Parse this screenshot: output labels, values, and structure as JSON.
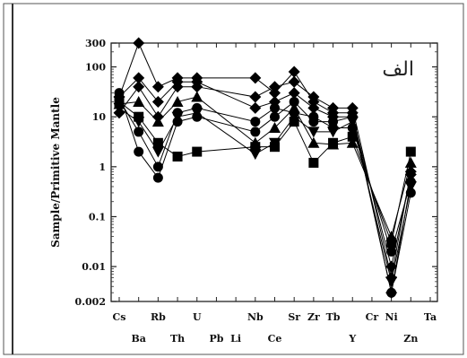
{
  "chart_data": {
    "type": "line",
    "ylabel": "Sample/Primitive Mantle",
    "yscale": "log",
    "ylim": [
      0.002,
      300
    ],
    "y_ticks": [
      {
        "v": 300,
        "label": "300"
      },
      {
        "v": 100,
        "label": "100"
      },
      {
        "v": 10,
        "label": "10"
      },
      {
        "v": 1,
        "label": "1"
      },
      {
        "v": 0.1,
        "label": "0.1"
      },
      {
        "v": 0.01,
        "label": "0.01"
      },
      {
        "v": 0.002,
        "label": "0.002"
      }
    ],
    "categories": [
      "Cs",
      "Ba",
      "Rb",
      "Th",
      "U",
      "Pb",
      "Li",
      "Nb",
      "Ce",
      "Sr",
      "Zr",
      "Tb",
      "Y",
      "Cr",
      "Ni",
      "Zn",
      "Ta"
    ],
    "top_row_labels": [
      "Cs",
      "Rb",
      "U",
      "Nb",
      "Sr",
      "Zr",
      "Tb",
      "Cr",
      "Ni",
      "Ta"
    ],
    "bottom_row_labels": [
      "Ba",
      "Th",
      "Pb",
      "Li",
      "Ce",
      "Y",
      "Zn"
    ],
    "annotation": "الف",
    "grid": false,
    "series": [
      {
        "marker": "diamond",
        "points": [
          [
            "Cs",
            25
          ],
          [
            "Ba",
            300
          ],
          [
            "Rb",
            40
          ],
          [
            "Th",
            60
          ],
          [
            "U",
            60
          ],
          [
            "Nb",
            60
          ],
          [
            "Ce",
            30
          ],
          [
            "Sr",
            80
          ],
          [
            "Zr",
            20
          ],
          [
            "Tb",
            12
          ],
          [
            "Y",
            12
          ],
          [
            "Ni",
            0.003
          ],
          [
            "Zn",
            0.5
          ]
        ]
      },
      {
        "marker": "diamond",
        "points": [
          [
            "Cs",
            12
          ],
          [
            "Ba",
            40
          ],
          [
            "Rb",
            10
          ],
          [
            "Th",
            40
          ],
          [
            "U",
            40
          ],
          [
            "Nb",
            25
          ],
          [
            "Ce",
            40
          ],
          [
            "Sr",
            50
          ],
          [
            "Zr",
            25
          ],
          [
            "Tb",
            15
          ],
          [
            "Y",
            15
          ],
          [
            "Ni",
            0.006
          ],
          [
            "Zn",
            0.8
          ]
        ]
      },
      {
        "marker": "square",
        "points": [
          [
            "Cs",
            20
          ],
          [
            "Ba",
            10
          ],
          [
            "Rb",
            3
          ],
          [
            "Th",
            1.6
          ],
          [
            "U",
            2
          ],
          [
            "Nb",
            2.5
          ],
          [
            "Ce",
            2.5
          ],
          [
            "Sr",
            8
          ],
          [
            "Zr",
            1.2
          ],
          [
            "Tb",
            3
          ],
          [
            "Y",
            4
          ],
          [
            "Ni",
            0.03
          ],
          [
            "Zn",
            2
          ]
        ]
      },
      {
        "marker": "circle",
        "points": [
          [
            "Cs",
            30
          ],
          [
            "Ba",
            2
          ],
          [
            "Rb",
            0.6
          ],
          [
            "Th",
            8
          ],
          [
            "U",
            10
          ],
          [
            "Nb",
            5
          ],
          [
            "Ce",
            10
          ],
          [
            "Sr",
            20
          ],
          [
            "Zr",
            8
          ],
          [
            "Tb",
            8
          ],
          [
            "Y",
            10
          ],
          [
            "Ni",
            0.003
          ],
          [
            "Zn",
            0.3
          ]
        ]
      },
      {
        "marker": "triangle",
        "points": [
          [
            "Cs",
            18
          ],
          [
            "Ba",
            20
          ],
          [
            "Rb",
            8
          ],
          [
            "Th",
            20
          ],
          [
            "U",
            25
          ],
          [
            "Nb",
            3
          ],
          [
            "Ce",
            6
          ],
          [
            "Sr",
            15
          ],
          [
            "Zr",
            3
          ],
          [
            "Tb",
            2.8
          ],
          [
            "Y",
            3
          ],
          [
            "Ni",
            0.04
          ],
          [
            "Zn",
            1.2
          ]
        ]
      },
      {
        "marker": "diamond",
        "points": [
          [
            "Cs",
            25
          ],
          [
            "Ba",
            60
          ],
          [
            "Rb",
            20
          ],
          [
            "Th",
            50
          ],
          [
            "U",
            50
          ],
          [
            "Nb",
            15
          ],
          [
            "Ce",
            20
          ],
          [
            "Sr",
            30
          ],
          [
            "Zr",
            15
          ],
          [
            "Tb",
            10
          ],
          [
            "Y",
            10
          ],
          [
            "Ni",
            0.01
          ],
          [
            "Zn",
            0.7
          ]
        ]
      },
      {
        "marker": "circle",
        "points": [
          [
            "Cs",
            22
          ],
          [
            "Ba",
            5
          ],
          [
            "Rb",
            1
          ],
          [
            "Th",
            12
          ],
          [
            "U",
            15
          ],
          [
            "Nb",
            8
          ],
          [
            "Ce",
            15
          ],
          [
            "Sr",
            12
          ],
          [
            "Zr",
            10
          ],
          [
            "Tb",
            6
          ],
          [
            "Y",
            6
          ],
          [
            "Ni",
            0.02
          ],
          [
            "Zn",
            0.5
          ]
        ]
      },
      {
        "marker": "triangle-down",
        "points": [
          [
            "Cs",
            15
          ],
          [
            "Ba",
            8
          ],
          [
            "Rb",
            2
          ],
          [
            "Th",
            10
          ],
          [
            "U",
            12
          ],
          [
            "Nb",
            1.8
          ],
          [
            "Ce",
            3
          ],
          [
            "Sr",
            10
          ],
          [
            "Zr",
            5
          ],
          [
            "Tb",
            5
          ],
          [
            "Y",
            8
          ],
          [
            "Ni",
            0.005
          ],
          [
            "Zn",
            0.4
          ]
        ]
      }
    ]
  }
}
